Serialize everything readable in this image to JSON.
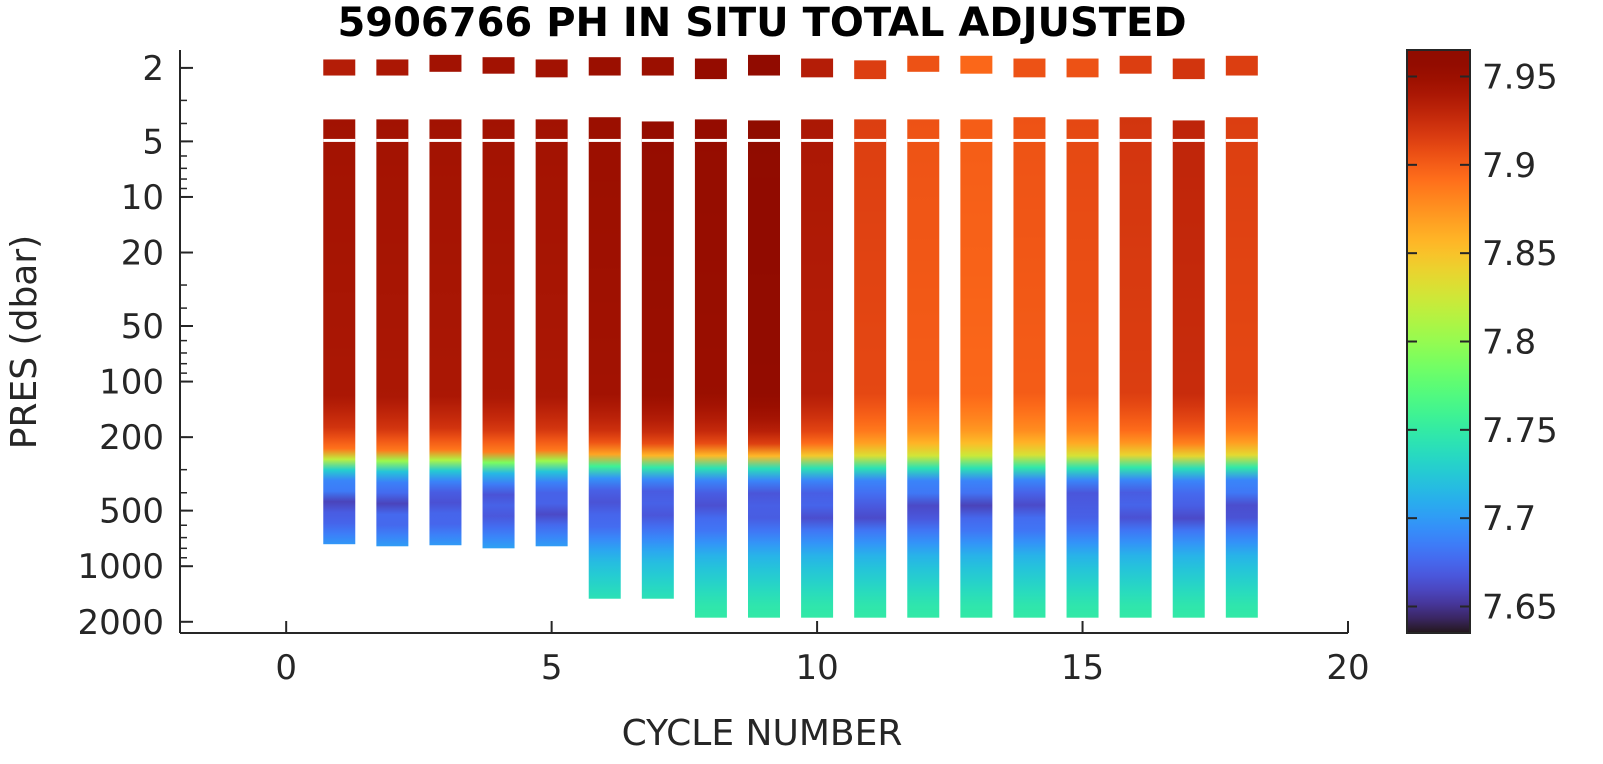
{
  "chart_data": {
    "type": "heatmap",
    "title": "5906766  PH IN SITU TOTAL ADJUSTED",
    "xlabel": "CYCLE NUMBER",
    "ylabel": "PRES (dbar)",
    "xlim": [
      -2,
      20
    ],
    "ylim": [
      1.6,
      2300
    ],
    "y_scale": "log",
    "y_reversed": true,
    "x_ticks": [
      0,
      5,
      10,
      15,
      20
    ],
    "y_ticks": [
      2,
      5,
      10,
      20,
      50,
      100,
      200,
      500,
      1000,
      2000
    ],
    "grid": false,
    "colorbar": {
      "colormap": "turbo",
      "range": [
        7.635,
        7.965
      ],
      "ticks": [
        7.65,
        7.7,
        7.75,
        7.8,
        7.85,
        7.9,
        7.95
      ]
    },
    "profiles": [
      {
        "cycle": 1,
        "surface_top": 1.8,
        "surface_bottom": 2.2,
        "surface_value": 7.935,
        "top": 3.8,
        "max_pres": 760,
        "upper_value": 7.945
      },
      {
        "cycle": 2,
        "surface_top": 1.8,
        "surface_bottom": 2.2,
        "surface_value": 7.94,
        "top": 3.8,
        "max_pres": 780,
        "upper_value": 7.945
      },
      {
        "cycle": 3,
        "surface_top": 1.7,
        "surface_bottom": 2.1,
        "surface_value": 7.945,
        "top": 3.8,
        "max_pres": 770,
        "upper_value": 7.945
      },
      {
        "cycle": 4,
        "surface_top": 1.75,
        "surface_bottom": 2.15,
        "surface_value": 7.945,
        "top": 3.8,
        "max_pres": 800,
        "upper_value": 7.945
      },
      {
        "cycle": 5,
        "surface_top": 1.8,
        "surface_bottom": 2.25,
        "surface_value": 7.945,
        "top": 3.8,
        "max_pres": 780,
        "upper_value": 7.945
      },
      {
        "cycle": 6,
        "surface_top": 1.75,
        "surface_bottom": 2.2,
        "surface_value": 7.95,
        "top": 3.7,
        "max_pres": 1500,
        "upper_value": 7.95
      },
      {
        "cycle": 7,
        "surface_top": 1.75,
        "surface_bottom": 2.2,
        "surface_value": 7.95,
        "top": 3.9,
        "max_pres": 1500,
        "upper_value": 7.955
      },
      {
        "cycle": 8,
        "surface_top": 1.78,
        "surface_bottom": 2.3,
        "surface_value": 7.955,
        "top": 3.8,
        "max_pres": 1900,
        "upper_value": 7.955
      },
      {
        "cycle": 9,
        "surface_top": 1.7,
        "surface_bottom": 2.2,
        "surface_value": 7.96,
        "top": 3.85,
        "max_pres": 1900,
        "upper_value": 7.962
      },
      {
        "cycle": 10,
        "surface_top": 1.78,
        "surface_bottom": 2.25,
        "surface_value": 7.935,
        "top": 3.8,
        "max_pres": 1900,
        "upper_value": 7.94
      },
      {
        "cycle": 11,
        "surface_top": 1.82,
        "surface_bottom": 2.3,
        "surface_value": 7.915,
        "top": 3.8,
        "max_pres": 1900,
        "upper_value": 7.915
      },
      {
        "cycle": 12,
        "surface_top": 1.72,
        "surface_bottom": 2.1,
        "surface_value": 7.905,
        "top": 3.8,
        "max_pres": 1900,
        "upper_value": 7.905
      },
      {
        "cycle": 13,
        "surface_top": 1.72,
        "surface_bottom": 2.15,
        "surface_value": 7.895,
        "top": 3.8,
        "max_pres": 1900,
        "upper_value": 7.9
      },
      {
        "cycle": 14,
        "surface_top": 1.78,
        "surface_bottom": 2.25,
        "surface_value": 7.905,
        "top": 3.7,
        "max_pres": 1900,
        "upper_value": 7.905
      },
      {
        "cycle": 15,
        "surface_top": 1.78,
        "surface_bottom": 2.25,
        "surface_value": 7.905,
        "top": 3.8,
        "max_pres": 1900,
        "upper_value": 7.91
      },
      {
        "cycle": 16,
        "surface_top": 1.72,
        "surface_bottom": 2.15,
        "surface_value": 7.915,
        "top": 3.7,
        "max_pres": 1900,
        "upper_value": 7.92
      },
      {
        "cycle": 17,
        "surface_top": 1.78,
        "surface_bottom": 2.3,
        "surface_value": 7.92,
        "top": 3.85,
        "max_pres": 1900,
        "upper_value": 7.93
      },
      {
        "cycle": 18,
        "surface_top": 1.72,
        "surface_bottom": 2.2,
        "surface_value": 7.915,
        "top": 3.7,
        "max_pres": 1900,
        "upper_value": 7.915
      }
    ]
  }
}
